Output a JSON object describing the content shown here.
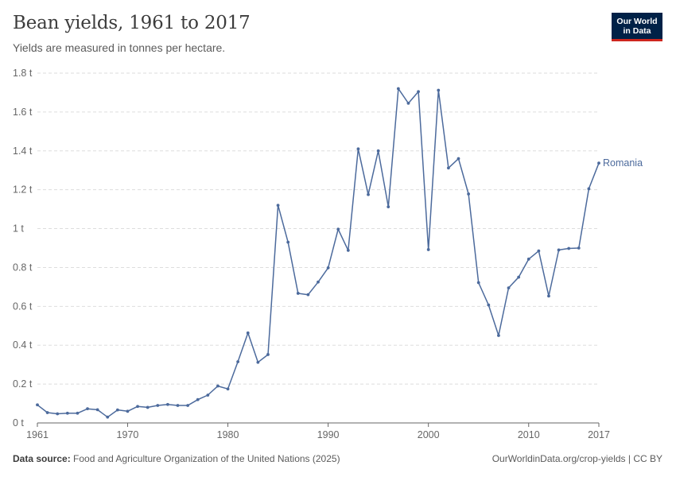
{
  "header": {
    "title": "Bean yields, 1961 to 2017",
    "subtitle": "Yields are measured in tonnes per hectare.",
    "logo_line1": "Our World",
    "logo_line2": "in Data"
  },
  "footer": {
    "source_label": "Data source:",
    "source_text": "Food and Agriculture Organization of the United Nations (2025)",
    "url": "OurWorldinData.org/crop-yields | CC BY"
  },
  "colors": {
    "series": "#4c6a9c",
    "grid": "#dddddd",
    "axis": "#666666",
    "tick_text": "#666666"
  },
  "chart_data": {
    "type": "line",
    "title": "Bean yields, 1961 to 2017",
    "subtitle": "Yields are measured in tonnes per hectare.",
    "xlabel": "",
    "ylabel": "",
    "xlim": [
      1961,
      2017
    ],
    "ylim": [
      0,
      1.8
    ],
    "grid": "horizontal dashed",
    "x_ticks": [
      1961,
      1970,
      1980,
      1990,
      2000,
      2010,
      2017
    ],
    "y_ticks": [
      {
        "value": 0,
        "label": "0 t"
      },
      {
        "value": 0.2,
        "label": "0.2 t"
      },
      {
        "value": 0.4,
        "label": "0.4 t"
      },
      {
        "value": 0.6,
        "label": "0.6 t"
      },
      {
        "value": 0.8,
        "label": "0.8 t"
      },
      {
        "value": 1.0,
        "label": "1 t"
      },
      {
        "value": 1.2,
        "label": "1.2 t"
      },
      {
        "value": 1.4,
        "label": "1.4 t"
      },
      {
        "value": 1.6,
        "label": "1.6 t"
      },
      {
        "value": 1.8,
        "label": "1.8 t"
      }
    ],
    "series": [
      {
        "name": "Romania",
        "x": [
          1961,
          1962,
          1963,
          1964,
          1965,
          1966,
          1967,
          1968,
          1969,
          1970,
          1971,
          1972,
          1973,
          1974,
          1975,
          1976,
          1977,
          1978,
          1979,
          1980,
          1981,
          1982,
          1983,
          1984,
          1985,
          1986,
          1987,
          1988,
          1989,
          1990,
          1991,
          1992,
          1993,
          1994,
          1995,
          1996,
          1997,
          1998,
          1999,
          2000,
          2001,
          2002,
          2003,
          2004,
          2005,
          2006,
          2007,
          2008,
          2009,
          2010,
          2011,
          2012,
          2013,
          2014,
          2015,
          2016,
          2017
        ],
        "values": [
          0.093,
          0.053,
          0.047,
          0.05,
          0.05,
          0.073,
          0.068,
          0.03,
          0.067,
          0.06,
          0.085,
          0.08,
          0.09,
          0.095,
          0.09,
          0.09,
          0.12,
          0.143,
          0.19,
          0.175,
          0.315,
          0.463,
          0.312,
          0.352,
          1.12,
          0.93,
          0.667,
          0.66,
          0.725,
          0.798,
          0.997,
          0.888,
          1.41,
          1.175,
          1.4,
          1.112,
          1.72,
          1.645,
          1.705,
          0.892,
          1.712,
          1.312,
          1.36,
          1.178,
          0.722,
          0.607,
          0.45,
          0.695,
          0.75,
          0.843,
          0.885,
          0.653,
          0.89,
          0.898,
          0.9,
          1.205,
          1.337
        ]
      }
    ]
  }
}
